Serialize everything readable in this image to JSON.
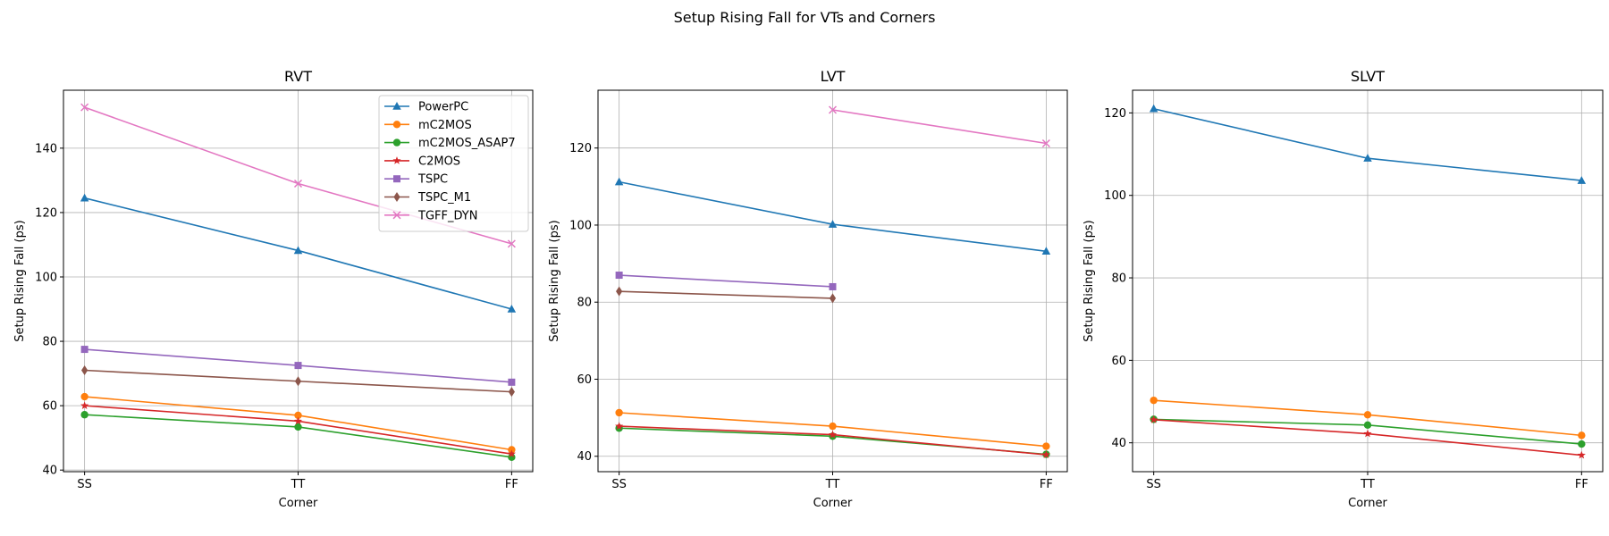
{
  "chart_data": {
    "type": "line",
    "title": "Setup Rising Fall for VTs and Corners",
    "xlabel": "Corner",
    "ylabel": "Setup Rising Fall (ps)",
    "categories": [
      "SS",
      "TT",
      "FF"
    ],
    "grid": true,
    "legend_placement": "top-right of first panel",
    "series_styles": [
      {
        "name": "PowerPC",
        "color": "#1f77b4",
        "marker": "triangle"
      },
      {
        "name": "mC2MOS",
        "color": "#ff7f0e",
        "marker": "circle"
      },
      {
        "name": "mC2MOS_ASAP7",
        "color": "#2ca02c",
        "marker": "circle"
      },
      {
        "name": "C2MOS",
        "color": "#d62728",
        "marker": "star"
      },
      {
        "name": "TSPC",
        "color": "#9467bd",
        "marker": "square"
      },
      {
        "name": "TSPC_M1",
        "color": "#8c564b",
        "marker": "diamond"
      },
      {
        "name": "TGFF_DYN",
        "color": "#e377c2",
        "marker": "x"
      }
    ],
    "panels": [
      {
        "title": "RVT",
        "ylim": [
          39.5,
          158
        ],
        "yticks": [
          40,
          60,
          80,
          100,
          120,
          140
        ],
        "series": [
          {
            "name": "PowerPC",
            "values": [
              124.5,
              108.2,
              90.0
            ]
          },
          {
            "name": "mC2MOS",
            "values": [
              62.8,
              57.0,
              46.3
            ]
          },
          {
            "name": "mC2MOS_ASAP7",
            "values": [
              57.2,
              53.4,
              44.0
            ]
          },
          {
            "name": "C2MOS",
            "values": [
              60.0,
              55.2,
              45.0
            ]
          },
          {
            "name": "TSPC",
            "values": [
              77.5,
              72.5,
              67.3
            ]
          },
          {
            "name": "TSPC_M1",
            "values": [
              71.0,
              67.6,
              64.3
            ]
          },
          {
            "name": "TGFF_DYN",
            "values": [
              152.7,
              129.0,
              110.3
            ]
          }
        ]
      },
      {
        "title": "LVT",
        "ylim": [
          36,
          135
        ],
        "yticks": [
          40,
          60,
          80,
          100,
          120
        ],
        "series": [
          {
            "name": "PowerPC",
            "values": [
              111.2,
              100.2,
              93.2
            ]
          },
          {
            "name": "mC2MOS",
            "values": [
              51.3,
              47.8,
              42.6
            ]
          },
          {
            "name": "mC2MOS_ASAP7",
            "values": [
              47.3,
              45.2,
              40.5
            ]
          },
          {
            "name": "C2MOS",
            "values": [
              47.8,
              45.6,
              40.4
            ]
          },
          {
            "name": "TSPC",
            "values": [
              87.0,
              84.0,
              null
            ]
          },
          {
            "name": "TSPC_M1",
            "values": [
              82.8,
              81.0,
              null
            ]
          },
          {
            "name": "TGFF_DYN",
            "values": [
              null,
              129.9,
              121.2
            ]
          }
        ]
      },
      {
        "title": "SLVT",
        "ylim": [
          33,
          125.5
        ],
        "yticks": [
          40,
          60,
          80,
          100,
          120
        ],
        "series": [
          {
            "name": "PowerPC",
            "values": [
              121.0,
              109.0,
              103.6
            ]
          },
          {
            "name": "mC2MOS",
            "values": [
              50.3,
              46.8,
              41.8
            ]
          },
          {
            "name": "mC2MOS_ASAP7",
            "values": [
              45.7,
              44.3,
              39.7
            ]
          },
          {
            "name": "C2MOS",
            "values": [
              45.6,
              42.2,
              37.0
            ]
          }
        ]
      }
    ]
  }
}
